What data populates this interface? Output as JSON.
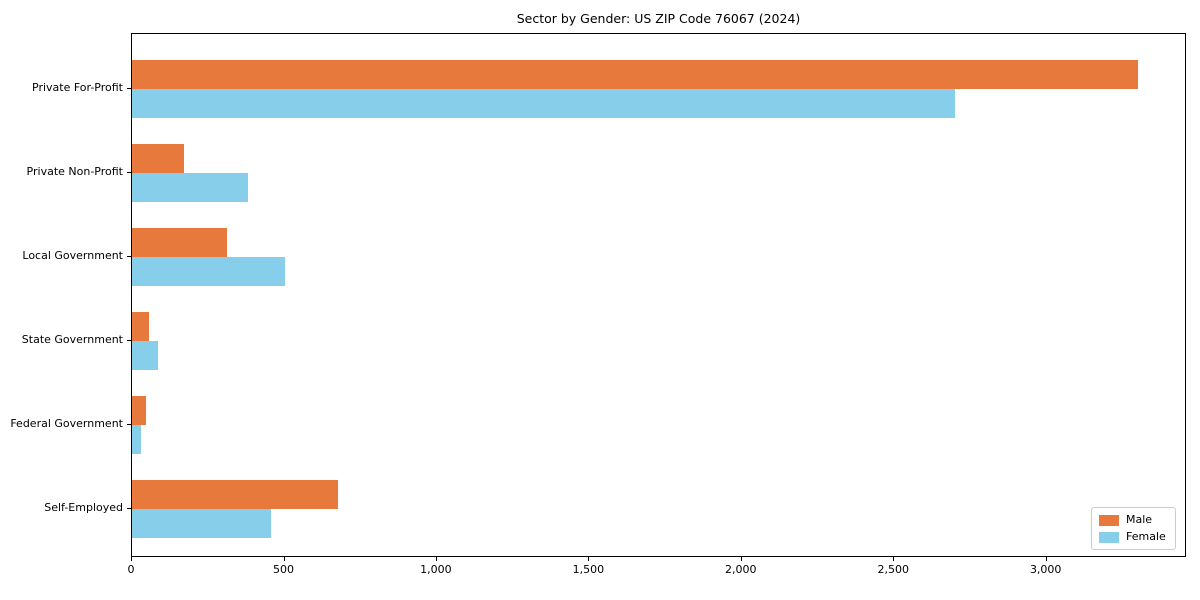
{
  "chart_data": {
    "type": "bar",
    "orientation": "horizontal",
    "title": "Sector by Gender: US ZIP Code 76067 (2024)",
    "categories": [
      "Private For-Profit",
      "Private Non-Profit",
      "Local Government",
      "State Government",
      "Federal Government",
      "Self-Employed"
    ],
    "series": [
      {
        "name": "Male",
        "color": "#e8793d",
        "values": [
          3300,
          170,
          310,
          55,
          45,
          675
        ]
      },
      {
        "name": "Female",
        "color": "#87ceeb",
        "values": [
          2700,
          380,
          500,
          85,
          28,
          455
        ]
      }
    ],
    "xlabel": "",
    "ylabel": "",
    "xlim": [
      0,
      3460
    ],
    "xticks": [
      0,
      500,
      1000,
      1500,
      2000,
      2500,
      3000
    ],
    "xtick_labels": [
      "0",
      "500",
      "1,000",
      "1,500",
      "2,000",
      "2,500",
      "3,000"
    ],
    "grid": false,
    "legend": {
      "position": "lower right",
      "entries": [
        "Male",
        "Female"
      ]
    }
  },
  "colors": {
    "male": "#e8793d",
    "female": "#87ceeb",
    "spine": "#000000",
    "legend_border": "#cccccc",
    "background": "#ffffff",
    "text": "#000000"
  }
}
